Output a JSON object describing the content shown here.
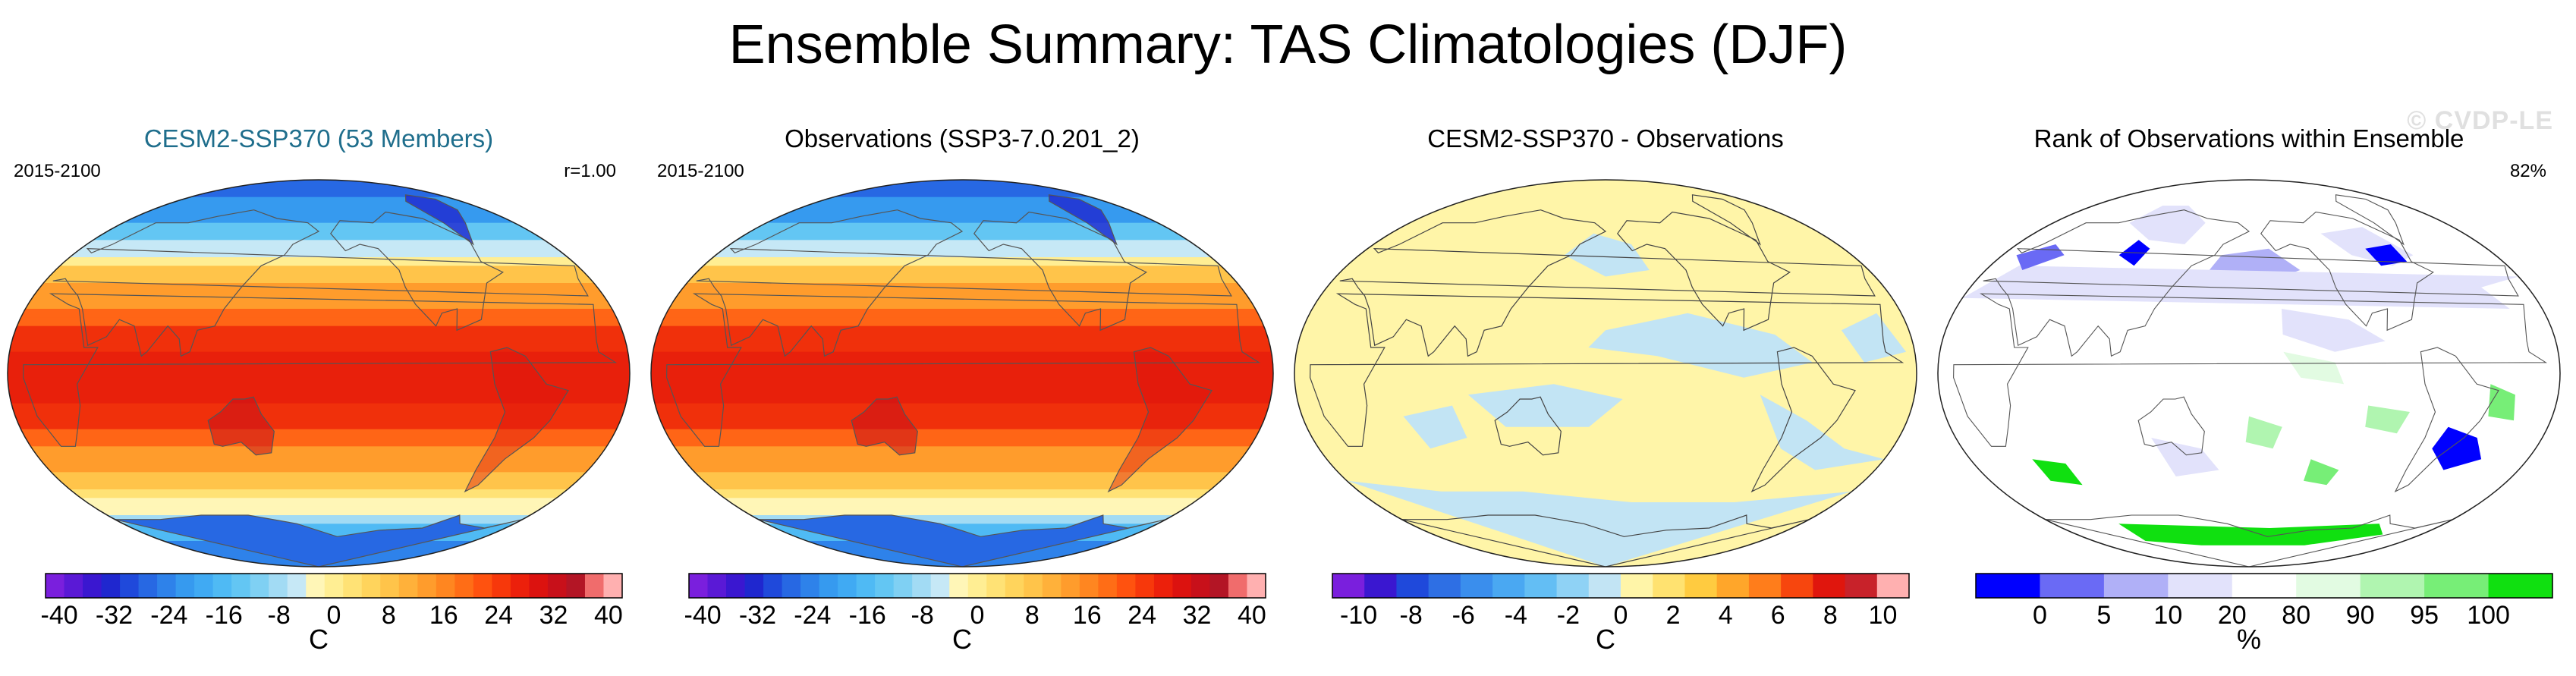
{
  "title": "Ensemble Summary: TAS Climatologies (DJF)",
  "watermark": "© CVDP-LE",
  "chart_data": [
    {
      "type": "heatmap",
      "title": "CESM2-SSP370 (53 Members)",
      "title_color": "#1f6e8c",
      "period": "2015-2100",
      "stat": "r=1.00",
      "field": "temperature",
      "unit": "C",
      "colorbar": {
        "ticks": [
          "-40",
          "-32",
          "-24",
          "-16",
          "-8",
          "0",
          "8",
          "16",
          "24",
          "32",
          "40"
        ],
        "range": [
          -42,
          42
        ],
        "colors": [
          "#7a1fdd",
          "#5a19d6",
          "#3a17d0",
          "#1f27cf",
          "#1f49db",
          "#2768e3",
          "#2e82ea",
          "#369aef",
          "#40aaf3",
          "#4fbaf4",
          "#63c6f3",
          "#7fd0f3",
          "#a2dbf4",
          "#c6e8f6",
          "#fff6b7",
          "#ffee93",
          "#ffe275",
          "#ffd45c",
          "#ffc44a",
          "#ffb13a",
          "#ff9c2c",
          "#ff8620",
          "#ff6d16",
          "#ff520f",
          "#f7380b",
          "#ec200b",
          "#dc120f",
          "#c8101a",
          "#b31525",
          "#f06c6c",
          "#ffb0b0"
        ]
      }
    },
    {
      "type": "heatmap",
      "title": "Observations (SSP3-7.0.201_2)",
      "title_color": "#000000",
      "period": "2015-2100",
      "stat": "",
      "field": "temperature",
      "unit": "C",
      "colorbar": {
        "ticks": [
          "-40",
          "-32",
          "-24",
          "-16",
          "-8",
          "0",
          "8",
          "16",
          "24",
          "32",
          "40"
        ],
        "range": [
          -42,
          42
        ],
        "colors": [
          "#7a1fdd",
          "#5a19d6",
          "#3a17d0",
          "#1f27cf",
          "#1f49db",
          "#2768e3",
          "#2e82ea",
          "#369aef",
          "#40aaf3",
          "#4fbaf4",
          "#63c6f3",
          "#7fd0f3",
          "#a2dbf4",
          "#c6e8f6",
          "#fff6b7",
          "#ffee93",
          "#ffe275",
          "#ffd45c",
          "#ffc44a",
          "#ffb13a",
          "#ff9c2c",
          "#ff8620",
          "#ff6d16",
          "#ff520f",
          "#f7380b",
          "#ec200b",
          "#dc120f",
          "#c8101a",
          "#b31525",
          "#f06c6c",
          "#ffb0b0"
        ]
      }
    },
    {
      "type": "heatmap",
      "title": "CESM2-SSP370 - Observations",
      "title_color": "#000000",
      "period": "",
      "stat": "",
      "field": "difference",
      "unit": "C",
      "colorbar": {
        "ticks": [
          "-10",
          "-8",
          "-6",
          "-4",
          "-2",
          "0",
          "2",
          "4",
          "6",
          "8",
          "10"
        ],
        "range": [
          -11,
          11
        ],
        "colors": [
          "#7a1fdd",
          "#3a17d0",
          "#1f49db",
          "#2e6fe4",
          "#3a8eed",
          "#4aa8f2",
          "#63bef4",
          "#8fd2f5",
          "#c2e4f4",
          "#fff5a8",
          "#ffe270",
          "#ffcb40",
          "#ffa62a",
          "#ff7d1b",
          "#f7460e",
          "#e0160d",
          "#c8222a",
          "#ffb0b0"
        ]
      }
    },
    {
      "type": "heatmap",
      "title": "Rank of Observations within Ensemble",
      "title_color": "#000000",
      "period": "",
      "stat": "82%",
      "field": "rank",
      "unit": "%",
      "colorbar": {
        "ticks": [
          "0",
          "5",
          "10",
          "20",
          "80",
          "90",
          "95",
          "100"
        ],
        "bins": [
          "<0",
          "0–5",
          "5–10",
          "10–20",
          "20–80",
          "80–90",
          "90–95",
          "95–100",
          ">100"
        ],
        "colors": [
          "#0000ff",
          "#6a6af5",
          "#b0b0f7",
          "#e2e2fb",
          "#ffffff",
          "#e2fbe2",
          "#b0f5b0",
          "#77ee77",
          "#10e010"
        ]
      }
    }
  ]
}
